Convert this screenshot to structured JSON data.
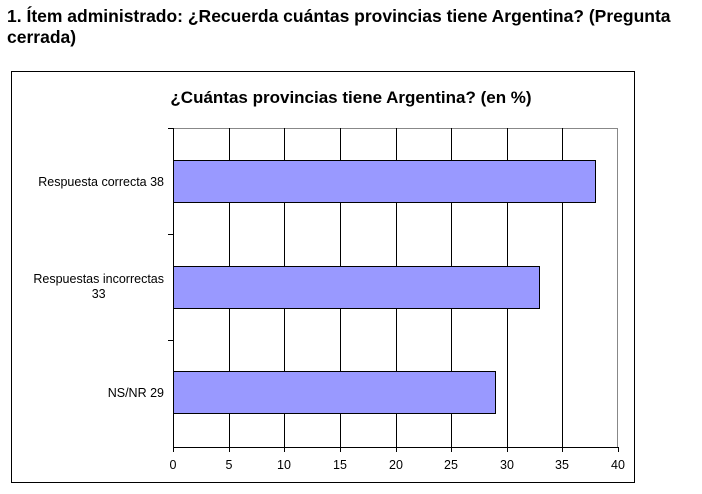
{
  "heading": "1. Ítem administrado: ¿Recuerda cuántas provincias tiene Argentina? (Pregunta cerrada)",
  "chart_data": {
    "type": "bar",
    "orientation": "horizontal",
    "title": "¿Cuántas provincias tiene Argentina? (en %)",
    "categories": [
      "Respuesta correcta  38",
      "Respuestas incorrectas\n33",
      "NS/NR  29"
    ],
    "category_names": [
      "Respuesta correcta",
      "Respuestas incorrectas",
      "NS/NR"
    ],
    "values": [
      38,
      33,
      29
    ],
    "xlabel": "",
    "ylabel": "",
    "xlim": [
      0,
      40
    ],
    "x_ticks": [
      "0",
      "5",
      "10",
      "15",
      "20",
      "25",
      "30",
      "35",
      "40"
    ],
    "grid": "vertical",
    "legend": "none",
    "bar_color": "#9999FF"
  }
}
